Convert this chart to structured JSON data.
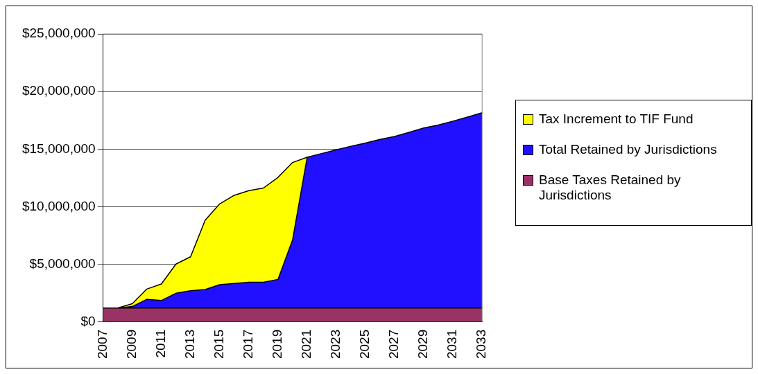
{
  "chart_data": {
    "type": "area",
    "stacked": true,
    "categories": [
      "2007",
      null,
      "2009",
      null,
      "2011",
      null,
      "2013",
      null,
      "2015",
      null,
      "2017",
      null,
      "2019",
      null,
      "2021",
      null,
      "2023",
      null,
      "2025",
      null,
      "2027",
      null,
      "2029",
      null,
      "2031",
      null,
      "2033"
    ],
    "series": [
      {
        "name": "Base Taxes Retained by Jurisdictions",
        "color": "#993366",
        "values": [
          1200000,
          1200000,
          1200000,
          1200000,
          1200000,
          1200000,
          1200000,
          1200000,
          1200000,
          1200000,
          1200000,
          1200000,
          1200000,
          1200000,
          1200000,
          1200000,
          1200000,
          1200000,
          1200000,
          1200000,
          1200000,
          1200000,
          1200000,
          1200000,
          1200000,
          1200000,
          1200000
        ]
      },
      {
        "name": "Total Retained by Jurisdictions",
        "color": "#2010ff",
        "values": [
          0,
          0,
          130000,
          760000,
          660000,
          1290000,
          1500000,
          1610000,
          2030000,
          2130000,
          2240000,
          2240000,
          2490000,
          5930000,
          13100000,
          13420000,
          13740000,
          14050000,
          14330000,
          14640000,
          14900000,
          15260000,
          15640000,
          15890000,
          16230000,
          16580000,
          16960000
        ]
      },
      {
        "name": "Tax Increment to TIF Fund",
        "color": "#ffff00",
        "values": [
          0,
          0,
          250000,
          890000,
          1430000,
          2530000,
          2950000,
          6010000,
          7020000,
          7660000,
          7950000,
          8180000,
          8860000,
          6710000,
          0,
          null,
          null,
          null,
          null,
          null,
          null,
          null,
          null,
          null,
          null,
          null,
          null
        ]
      }
    ],
    "ylim": [
      0,
      25000000
    ],
    "yticks": [
      {
        "value": 0,
        "label": "$0"
      },
      {
        "value": 5000000,
        "label": "$5,000,000"
      },
      {
        "value": 10000000,
        "label": "$10,000,000"
      },
      {
        "value": 15000000,
        "label": "$15,000,000"
      },
      {
        "value": 20000000,
        "label": "$20,000,000"
      },
      {
        "value": 25000000,
        "label": "$25,000,000"
      }
    ],
    "grid": "y",
    "legend": "right"
  }
}
